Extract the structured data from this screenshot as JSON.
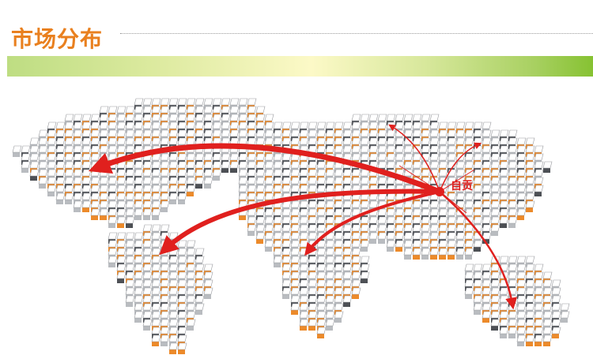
{
  "header": {
    "title": "市场分布"
  },
  "map": {
    "origin_label": "自贡",
    "colors": {
      "arrow": "#e0201e",
      "tile_top": "#ffffff",
      "tile_orange": "#ec8a2a",
      "tile_dark": "#4d5055",
      "title": "#e9801f"
    }
  }
}
